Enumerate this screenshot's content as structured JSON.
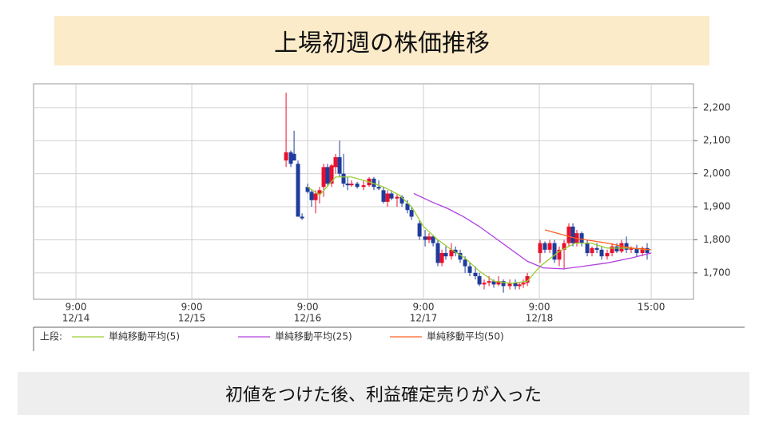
{
  "header": {
    "title": "上場初週の株価推移"
  },
  "caption": "初値をつけた後、利益確定売りが入った",
  "chart_data": {
    "type": "candlestick",
    "legend_prefix": "上段:",
    "up_color": "#e8102c",
    "down_color": "#1f3c9c",
    "grid": true,
    "xlim": [
      -0.366,
      5.331
    ],
    "xticks": [
      {
        "value": 0,
        "label": "9:00"
      },
      {
        "value": 1,
        "label": "9:00"
      },
      {
        "value": 2,
        "label": "9:00"
      },
      {
        "value": 3,
        "label": "9:00"
      },
      {
        "value": 4,
        "label": "9:00"
      },
      {
        "value": 4.966,
        "label": "15:00"
      }
    ],
    "xtick_dates": [
      "12/14",
      "12/15",
      "12/16",
      "12/17",
      "12/18"
    ],
    "ylim": [
      1620,
      2272
    ],
    "yticks": [
      {
        "value": 1700,
        "label": "1,700"
      },
      {
        "value": 1800,
        "label": "1,800"
      },
      {
        "value": 1900,
        "label": "1,900"
      },
      {
        "value": 2000,
        "label": "2,000"
      },
      {
        "value": 2100,
        "label": "2,100"
      },
      {
        "value": 2200,
        "label": "2,200"
      }
    ],
    "x": [
      1.814,
      1.855,
      1.883,
      1.917,
      1.952,
      2.0,
      2.034,
      2.069,
      2.103,
      2.138,
      2.172,
      2.207,
      2.241,
      2.276,
      2.31,
      2.345,
      2.379,
      2.428,
      2.483,
      2.531,
      2.572,
      2.614,
      2.655,
      2.69,
      2.724,
      2.772,
      2.814,
      2.862,
      2.897,
      2.966,
      3.014,
      3.048,
      3.083,
      3.124,
      3.159,
      3.193,
      3.241,
      3.276,
      3.317,
      3.359,
      3.4,
      3.448,
      3.483,
      3.524,
      3.566,
      3.607,
      3.648,
      3.69,
      3.745,
      3.793,
      3.828,
      3.862,
      3.897,
      4.007,
      4.048,
      4.09,
      4.131,
      4.172,
      4.214,
      4.255,
      4.29,
      4.324,
      4.366,
      4.414,
      4.455,
      4.497,
      4.538,
      4.586,
      4.628,
      4.669,
      4.71,
      4.752,
      4.793,
      4.841,
      4.89,
      4.931
    ],
    "open": [
      2040,
      2065,
      2060,
      2030,
      1870,
      1960,
      1945,
      1920,
      1940,
      1960,
      2020,
      1970,
      2020,
      2050,
      2000,
      1970,
      1965,
      1970,
      1960,
      1965,
      1985,
      1960,
      1950,
      1915,
      1940,
      1925,
      1930,
      1910,
      1890,
      1850,
      1810,
      1800,
      1810,
      1790,
      1730,
      1760,
      1750,
      1770,
      1760,
      1740,
      1720,
      1700,
      1690,
      1665,
      1670,
      1675,
      1665,
      1675,
      1660,
      1670,
      1660,
      1665,
      1670,
      1760,
      1790,
      1770,
      1790,
      1740,
      1770,
      1790,
      1840,
      1790,
      1820,
      1790,
      1760,
      1775,
      1770,
      1750,
      1760,
      1780,
      1765,
      1790,
      1770,
      1775,
      1760,
      1775
    ],
    "high": [
      2245,
      2070,
      2130,
      2040,
      1880,
      1970,
      1950,
      1950,
      1960,
      2030,
      2030,
      2030,
      2060,
      2100,
      2060,
      1990,
      1980,
      1975,
      1980,
      1990,
      1990,
      1980,
      1960,
      1950,
      1950,
      1940,
      1935,
      1920,
      1900,
      1860,
      1830,
      1820,
      1815,
      1800,
      1770,
      1780,
      1790,
      1780,
      1770,
      1750,
      1730,
      1720,
      1700,
      1680,
      1690,
      1680,
      1690,
      1680,
      1680,
      1680,
      1670,
      1680,
      1700,
      1800,
      1795,
      1800,
      1800,
      1780,
      1800,
      1850,
      1850,
      1830,
      1825,
      1800,
      1780,
      1790,
      1780,
      1770,
      1790,
      1790,
      1800,
      1810,
      1780,
      1785,
      1780,
      1790
    ],
    "low": [
      2020,
      2020,
      2040,
      1870,
      1860,
      1940,
      1900,
      1880,
      1910,
      1930,
      1960,
      1960,
      2000,
      1990,
      1960,
      1950,
      1960,
      1955,
      1950,
      1960,
      1950,
      1950,
      1910,
      1900,
      1920,
      1900,
      1900,
      1880,
      1860,
      1800,
      1780,
      1790,
      1780,
      1720,
      1720,
      1740,
      1740,
      1750,
      1730,
      1700,
      1690,
      1680,
      1660,
      1650,
      1660,
      1655,
      1660,
      1640,
      1650,
      1650,
      1650,
      1655,
      1660,
      1730,
      1760,
      1760,
      1730,
      1720,
      1710,
      1780,
      1780,
      1780,
      1780,
      1750,
      1750,
      1760,
      1740,
      1740,
      1750,
      1760,
      1760,
      1760,
      1760,
      1750,
      1750,
      1740
    ],
    "close": [
      2065,
      2030,
      2040,
      1870,
      1865,
      1945,
      1920,
      1940,
      1950,
      2020,
      1970,
      2025,
      2050,
      2000,
      1970,
      1965,
      1970,
      1960,
      1965,
      1985,
      1960,
      1955,
      1915,
      1940,
      1925,
      1930,
      1910,
      1890,
      1870,
      1810,
      1800,
      1810,
      1790,
      1730,
      1760,
      1750,
      1770,
      1760,
      1740,
      1720,
      1700,
      1690,
      1665,
      1670,
      1675,
      1665,
      1675,
      1660,
      1670,
      1660,
      1665,
      1670,
      1690,
      1790,
      1770,
      1790,
      1740,
      1770,
      1790,
      1840,
      1790,
      1820,
      1790,
      1760,
      1775,
      1770,
      1750,
      1760,
      1780,
      1765,
      1790,
      1770,
      1775,
      1760,
      1775,
      1760
    ],
    "series": [
      {
        "name": "単純移動平均(5)",
        "color": "#9acd32",
        "x": [
          2.0,
          2.103,
          2.241,
          2.379,
          2.531,
          2.655,
          2.793,
          2.897,
          3.0,
          3.124,
          3.241,
          3.359,
          3.483,
          3.607,
          3.752,
          3.897,
          4.007,
          4.172,
          4.31,
          4.448,
          4.586,
          4.793,
          4.931
        ],
        "values": [
          1960,
          1935,
          1990,
          1990,
          1975,
          1960,
          1935,
          1900,
          1840,
          1800,
          1770,
          1745,
          1705,
          1675,
          1668,
          1675,
          1720,
          1765,
          1790,
          1790,
          1775,
          1775,
          1770
        ]
      },
      {
        "name": "単純移動平均(25)",
        "color": "#b040e0",
        "x": [
          2.917,
          3.069,
          3.207,
          3.345,
          3.483,
          3.621,
          3.759,
          3.897,
          4.034,
          4.207,
          4.379,
          4.586,
          4.793,
          4.966
        ],
        "values": [
          1940,
          1915,
          1895,
          1870,
          1840,
          1805,
          1770,
          1735,
          1715,
          1712,
          1720,
          1730,
          1745,
          1760
        ]
      },
      {
        "name": "単純移動平均(50)",
        "color": "#ff6020",
        "x": [
          4.048,
          4.31,
          4.586,
          4.793,
          4.966
        ],
        "values": [
          1830,
          1805,
          1790,
          1775,
          1770
        ]
      }
    ]
  }
}
